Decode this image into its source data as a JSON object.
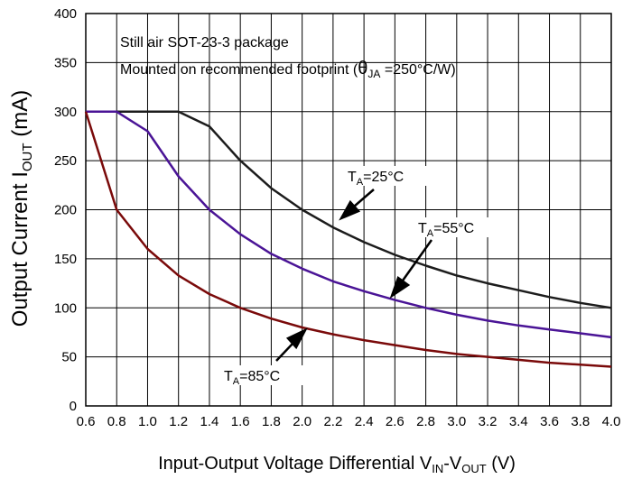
{
  "chart_data": {
    "type": "line",
    "title": "",
    "xlabel": {
      "prefix": "Input-Output Voltage Differential V",
      "sub1": "IN",
      "mid": "-V",
      "sub2": "OUT",
      "suffix": " (V)"
    },
    "ylabel": {
      "prefix": "Output Current I",
      "sub": "OUT",
      "suffix": " (mA)"
    },
    "xlim": [
      0.6,
      4.0
    ],
    "ylim": [
      0,
      400
    ],
    "x_ticks": [
      0.6,
      0.8,
      1.0,
      1.2,
      1.4,
      1.6,
      1.8,
      2.0,
      2.2,
      2.4,
      2.6,
      2.8,
      3.0,
      3.2,
      3.4,
      3.6,
      3.8,
      4.0
    ],
    "x_tick_labels": [
      "0.6",
      "0.8",
      "1.0",
      "1.2",
      "1.4",
      "1.6",
      "1.8",
      "2.0",
      "2.2",
      "2.4",
      "2.6",
      "2.8",
      "3.0",
      "3.2",
      "3.4",
      "3.6",
      "3.8",
      "4.0"
    ],
    "y_ticks": [
      0,
      50,
      100,
      150,
      200,
      250,
      300,
      350,
      400
    ],
    "y_tick_labels": [
      "0",
      "50",
      "100",
      "150",
      "200",
      "250",
      "300",
      "350",
      "400"
    ],
    "grid": true,
    "notes": {
      "line1": "Still air SOT-23-3 package",
      "line2_prefix": "Mounted on recommended footprint (",
      "theta": "θ",
      "theta_sub": "JA",
      "line2_suffix": " =250°C/W)"
    },
    "series": [
      {
        "name": "25°C",
        "label_prefix": "T",
        "label_sub": "A",
        "label_suffix": "=25°C",
        "color": "#1c1c1c",
        "x": [
          0.6,
          0.8,
          1.0,
          1.2,
          1.4,
          1.6,
          1.8,
          2.0,
          2.2,
          2.4,
          2.6,
          2.8,
          3.0,
          3.2,
          3.4,
          3.6,
          3.8,
          4.0
        ],
        "y": [
          300,
          300,
          300,
          300,
          285,
          250,
          222,
          200,
          182,
          167,
          154,
          143,
          133,
          125,
          118,
          111,
          105,
          100
        ]
      },
      {
        "name": "55°C",
        "label_prefix": "T",
        "label_sub": "A",
        "label_suffix": "=55°C",
        "color": "#4a1496",
        "x": [
          0.6,
          0.8,
          1.0,
          1.2,
          1.4,
          1.6,
          1.8,
          2.0,
          2.2,
          2.4,
          2.6,
          2.8,
          3.0,
          3.2,
          3.4,
          3.6,
          3.8,
          4.0
        ],
        "y": [
          300,
          300,
          280,
          234,
          200,
          175,
          155,
          140,
          127,
          117,
          108,
          100,
          93,
          87,
          82,
          78,
          74,
          70
        ]
      },
      {
        "name": "85°C",
        "label_prefix": "T",
        "label_sub": "A",
        "label_suffix": "=85°C",
        "color": "#7a0a0a",
        "x": [
          0.6,
          0.8,
          1.0,
          1.2,
          1.4,
          1.6,
          1.8,
          2.0,
          2.2,
          2.4,
          2.6,
          2.8,
          3.0,
          3.2,
          3.4,
          3.6,
          3.8,
          4.0
        ],
        "y": [
          300,
          200,
          160,
          133,
          114,
          100,
          89,
          80,
          73,
          67,
          62,
          57,
          53,
          50,
          47,
          44,
          42,
          40
        ]
      }
    ]
  }
}
